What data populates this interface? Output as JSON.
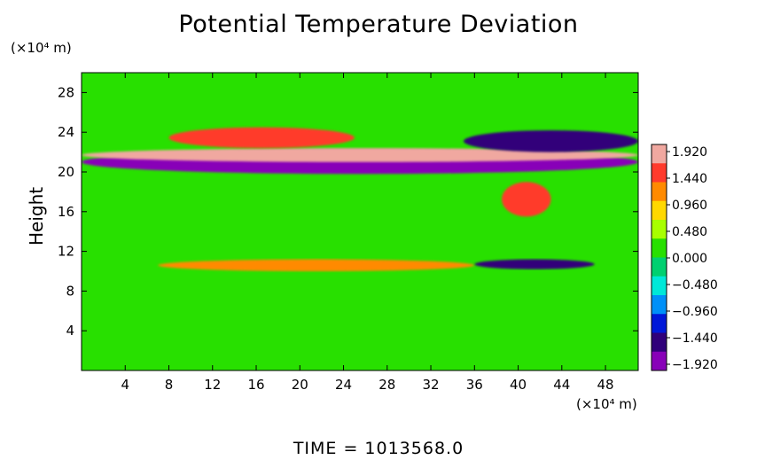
{
  "chart_data": {
    "type": "heatmap",
    "title": "Potential Temperature Deviation",
    "ylabel": "Height",
    "y_units": "(×10⁴ m)",
    "x_units": "(×10⁴ m)",
    "xlim": [
      0,
      51
    ],
    "ylim": [
      0,
      30
    ],
    "x_ticks": [
      "4",
      "8",
      "12",
      "16",
      "20",
      "24",
      "28",
      "32",
      "36",
      "40",
      "44",
      "48"
    ],
    "y_ticks": [
      "4",
      "8",
      "12",
      "16",
      "20",
      "24",
      "28"
    ],
    "colorbar_labels": [
      "1.920",
      "1.440",
      "0.960",
      "0.480",
      "0.000",
      "−0.480",
      "−0.960",
      "−1.440",
      "−1.920"
    ],
    "colorbar_colors": [
      "#f0a8a0",
      "#ff3a2c",
      "#ff8a00",
      "#ffd800",
      "#a8ff00",
      "#28e000",
      "#00d070",
      "#00e8d8",
      "#0090f8",
      "#0018d8",
      "#30007a",
      "#8800b8"
    ],
    "colorbar_range": [
      -2.0,
      2.0
    ],
    "features": [
      {
        "x": [
          0,
          51
        ],
        "y": [
          19.8,
          22.2
        ],
        "value": -1.9
      },
      {
        "x": [
          0,
          51
        ],
        "y": [
          21.0,
          22.4
        ],
        "value": 1.9
      },
      {
        "x": [
          8,
          25
        ],
        "y": [
          22.4,
          24.5
        ],
        "value": 1.7
      },
      {
        "x": [
          35,
          51
        ],
        "y": [
          22.0,
          24.2
        ],
        "value": -1.6
      },
      {
        "x": [
          7,
          36
        ],
        "y": [
          10.0,
          11.2
        ],
        "value": 1.3
      },
      {
        "x": [
          36,
          47
        ],
        "y": [
          10.2,
          11.2
        ],
        "value": -1.6
      },
      {
        "x": [
          38.5,
          43
        ],
        "y": [
          15.5,
          19.0
        ],
        "value": 1.6
      }
    ],
    "time_label": "TIME",
    "time_value": "1013568.0"
  },
  "time_text": "TIME  =  1013568.0"
}
